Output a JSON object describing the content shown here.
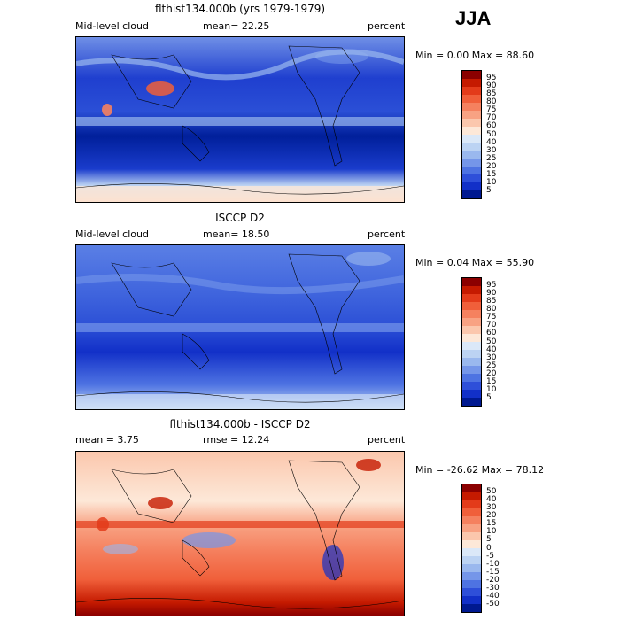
{
  "season": "JJA",
  "panels": [
    {
      "title": "flthist134.000b (yrs 1979-1979)",
      "left_label": "Mid-level cloud",
      "center_label": "mean=  22.25",
      "right_label": "percent",
      "minmax": "Min =   0.00 Max =  88.60",
      "colorbar": {
        "labels": [
          "95",
          "90",
          "85",
          "80",
          "75",
          "70",
          "60",
          "50",
          "40",
          "30",
          "25",
          "20",
          "15",
          "10",
          "5"
        ],
        "colors": [
          "#8b0000",
          "#c51a00",
          "#e33b1a",
          "#f05f3a",
          "#f5815f",
          "#f8a283",
          "#fbc7ad",
          "#fde8d8",
          "#dbe8f8",
          "#bcd3f3",
          "#9ab8ee",
          "#7596e9",
          "#4e73e2",
          "#2e4fd9",
          "#1230c8",
          "#001990"
        ]
      }
    },
    {
      "title": "ISCCP D2",
      "left_label": "Mid-level cloud",
      "center_label": "mean=  18.50",
      "right_label": "percent",
      "minmax": "Min =   0.04 Max =  55.90",
      "colorbar": {
        "labels": [
          "95",
          "90",
          "85",
          "80",
          "75",
          "70",
          "60",
          "50",
          "40",
          "30",
          "25",
          "20",
          "15",
          "10",
          "5"
        ],
        "colors": [
          "#8b0000",
          "#c51a00",
          "#e33b1a",
          "#f05f3a",
          "#f5815f",
          "#f8a283",
          "#fbc7ad",
          "#fde8d8",
          "#dbe8f8",
          "#bcd3f3",
          "#9ab8ee",
          "#7596e9",
          "#4e73e2",
          "#2e4fd9",
          "#1230c8",
          "#001990"
        ]
      }
    },
    {
      "title": "flthist134.000b - ISCCP D2",
      "left_label": "mean =    3.75",
      "center_label": "rmse =   12.24",
      "right_label": "percent",
      "minmax": "Min = -26.62 Max =  78.12",
      "colorbar": {
        "labels": [
          "50",
          "40",
          "30",
          "20",
          "15",
          "10",
          "5",
          "0",
          "-5",
          "-10",
          "-15",
          "-20",
          "-30",
          "-40",
          "-50"
        ],
        "colors": [
          "#8b0000",
          "#c51a00",
          "#e33b1a",
          "#f05f3a",
          "#f5815f",
          "#f8a283",
          "#fbc7ad",
          "#fde8d8",
          "#dbe8f8",
          "#bcd3f3",
          "#9ab8ee",
          "#7596e9",
          "#4e73e2",
          "#2e4fd9",
          "#1230c8",
          "#001990"
        ]
      }
    }
  ]
}
